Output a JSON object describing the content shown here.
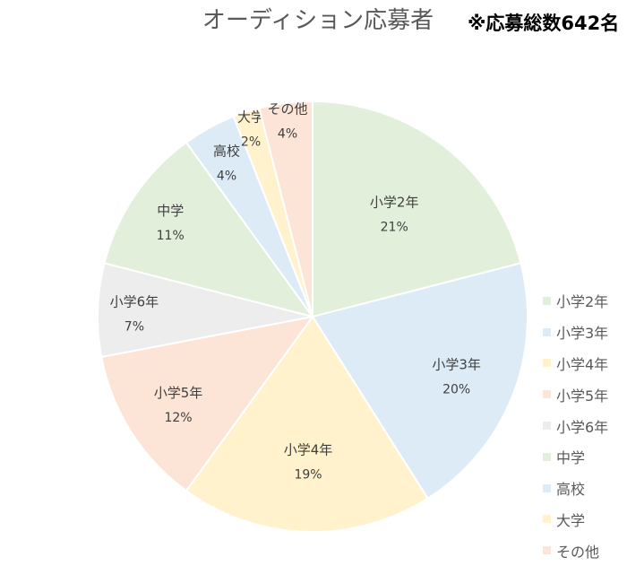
{
  "chart_data": {
    "type": "pie",
    "title": "オーディション応募者",
    "note": "※応募総数642名",
    "legend_position": "right",
    "categories": [
      "小学2年",
      "小学3年",
      "小学4年",
      "小学5年",
      "小学6年",
      "中学",
      "高校",
      "大学",
      "その他"
    ],
    "values": [
      21,
      20,
      19,
      12,
      7,
      11,
      4,
      2,
      4
    ],
    "data_labels": [
      "21%",
      "20%",
      "19%",
      "12%",
      "7%",
      "11%",
      "4%",
      "2%",
      "4%"
    ],
    "colors": [
      "#E2EFDA",
      "#DDEBF7",
      "#FFF2CC",
      "#FCE4D6",
      "#EDEDED",
      "#E2EFDA",
      "#DDEBF7",
      "#FFF2CC",
      "#FCE4D6"
    ]
  }
}
